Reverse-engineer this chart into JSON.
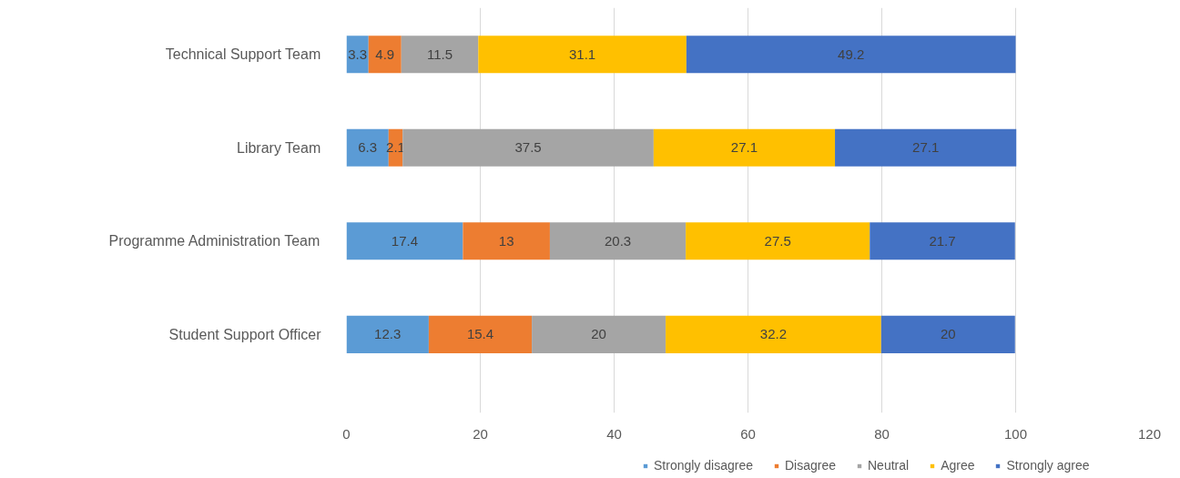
{
  "chart_data": {
    "type": "bar",
    "orientation": "horizontal",
    "stacked": true,
    "categories": [
      "Technical Support Team",
      "Library Team",
      "Programme Administration Team",
      "Student Support Officer"
    ],
    "series": [
      {
        "name": "Strongly disagree",
        "color": "#5b9bd5",
        "values": [
          3.3,
          6.3,
          17.4,
          12.3
        ]
      },
      {
        "name": "Disagree",
        "color": "#ed7d31",
        "values": [
          4.9,
          2.1,
          13,
          15.4
        ]
      },
      {
        "name": "Neutral",
        "color": "#a5a5a5",
        "values": [
          11.5,
          37.5,
          20.3,
          20
        ]
      },
      {
        "name": "Agree",
        "color": "#ffc000",
        "values": [
          31.1,
          27.1,
          27.5,
          32.2
        ]
      },
      {
        "name": "Strongly agree",
        "color": "#4472c4",
        "values": [
          49.2,
          27.1,
          21.7,
          20
        ]
      }
    ],
    "xlim": [
      0,
      120
    ],
    "xticks": [
      0,
      20,
      40,
      60,
      80,
      100,
      120
    ],
    "grid": "x",
    "legend": "bottom",
    "data_labels": true
  }
}
